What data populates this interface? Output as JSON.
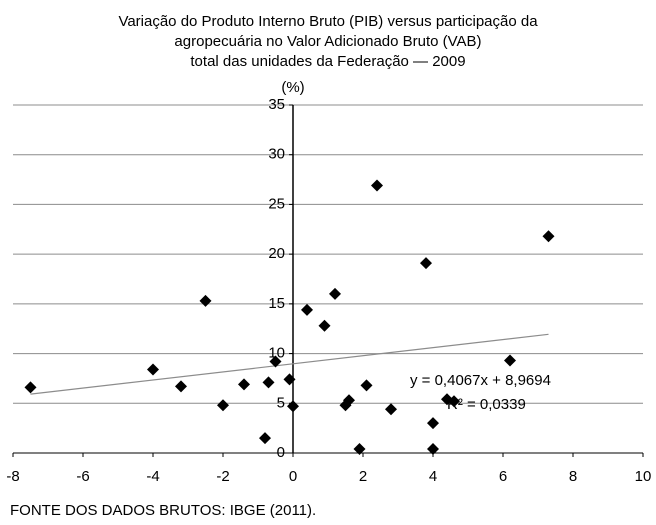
{
  "chart_data": {
    "type": "scatter",
    "title": [
      "Variação do Produto Interno Bruto (PIB) versus participação da",
      "agropecuária no Valor Adicionado Bruto (VAB)",
      "total das unidades da Federação — 2009"
    ],
    "y_label": "(%)",
    "source": "FONTE DOS DADOS BRUTOS: IBGE (2011).",
    "color": "#000000",
    "x": [
      -7.5,
      -4,
      -3.2,
      -2,
      -2.5,
      -1.4,
      -0.8,
      -0.7,
      -0.5,
      -0.1,
      0,
      0.4,
      0.9,
      1.2,
      1.5,
      1.6,
      1.9,
      2.1,
      2.4,
      2.8,
      3.8,
      4,
      4,
      4.4,
      4.6,
      6.2,
      7.3
    ],
    "values": [
      6.6,
      8.4,
      6.7,
      4.8,
      15.3,
      6.9,
      1.5,
      7.1,
      9.2,
      7.4,
      4.7,
      14.4,
      12.8,
      16,
      4.8,
      5.3,
      0.4,
      6.8,
      26.9,
      4.4,
      19.1,
      3,
      0.4,
      5.4,
      5.2,
      9.3,
      21.8
    ],
    "trendline": {
      "slope": 0.4067,
      "intercept": 8.9694,
      "label": "y = 0,4067x + 8,9694",
      "r2": 0.0339,
      "r2_label": "R² = 0,0339",
      "color": "#8c8c8c"
    },
    "xlim": [
      -8,
      10
    ],
    "xticks": [
      -8,
      -6,
      -4,
      -2,
      0,
      2,
      4,
      6,
      8,
      10
    ],
    "ylim": [
      0,
      35
    ],
    "yticks": [
      0,
      5,
      10,
      15,
      20,
      25,
      30,
      35
    ],
    "grid": true
  }
}
